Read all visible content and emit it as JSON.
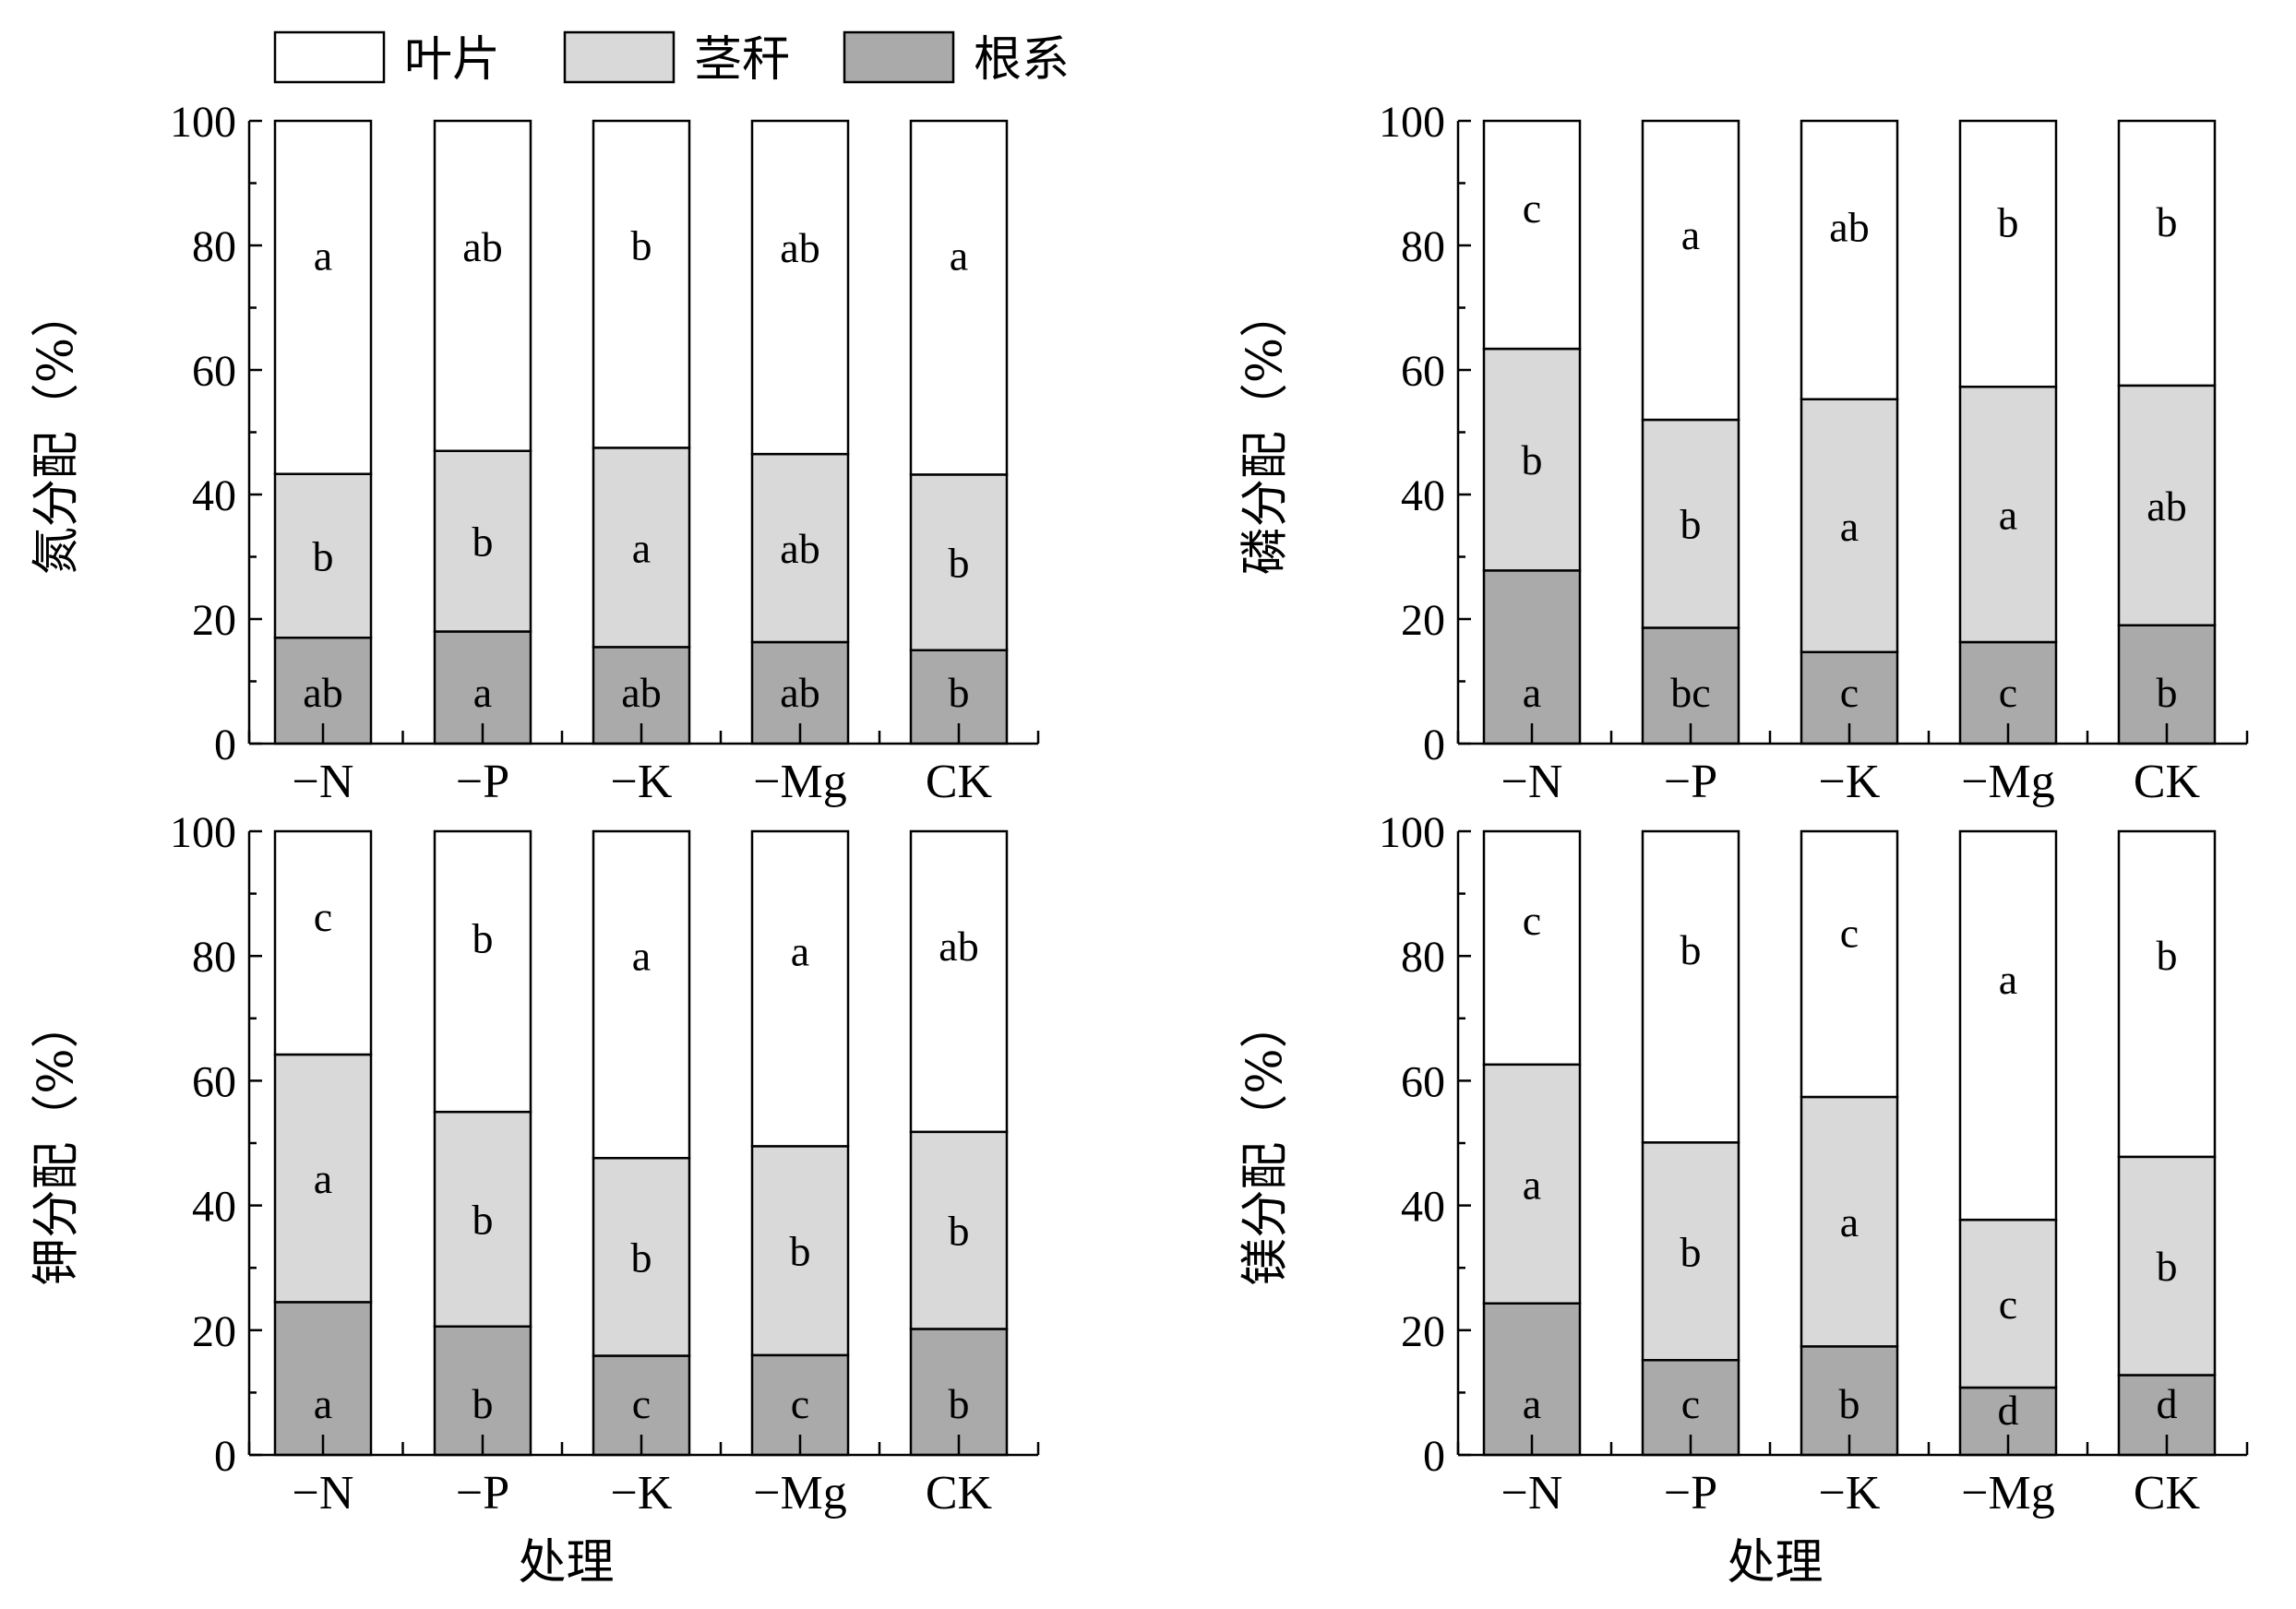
{
  "chart_data": {
    "legend": [
      {
        "name": "叶片",
        "color": "#ffffff"
      },
      {
        "name": "茎秆",
        "color": "#d9d9d9"
      },
      {
        "name": "根系",
        "color": "#aaaaaa"
      }
    ],
    "panels": [
      {
        "type": "bar",
        "stacked": true,
        "ylabel": "氮分配（%）",
        "xlabel": "",
        "ylim": [
          0,
          100
        ],
        "yticks": [
          "0",
          "20",
          "40",
          "60",
          "80",
          "100"
        ],
        "categories": [
          "−N",
          "−P",
          "−K",
          "−Mg",
          "CK"
        ],
        "series": [
          {
            "name": "根系",
            "values": [
              17,
              18,
              15.5,
              16.3,
              15
            ],
            "letters": [
              "ab",
              "a",
              "ab",
              "ab",
              "b"
            ]
          },
          {
            "name": "茎秆",
            "values": [
              26.3,
              29,
              32,
              30.2,
              28.2
            ],
            "letters": [
              "b",
              "b",
              "a",
              "ab",
              "b"
            ]
          },
          {
            "name": "叶片",
            "values": [
              56.7,
              53,
              52.5,
              53.5,
              56.8
            ],
            "letters": [
              "a",
              "ab",
              "b",
              "ab",
              "a"
            ]
          }
        ]
      },
      {
        "type": "bar",
        "stacked": true,
        "ylabel": "磷分配（%）",
        "xlabel": "",
        "ylim": [
          0,
          100
        ],
        "yticks": [
          "0",
          "20",
          "40",
          "60",
          "80",
          "100"
        ],
        "categories": [
          "−N",
          "−P",
          "−K",
          "−Mg",
          "CK"
        ],
        "series": [
          {
            "name": "根系",
            "values": [
              27.8,
              18.6,
              14.7,
              16.3,
              19
            ],
            "letters": [
              "a",
              "bc",
              "c",
              "c",
              "b"
            ]
          },
          {
            "name": "茎秆",
            "values": [
              35.6,
              33.4,
              40.6,
              41,
              38.5
            ],
            "letters": [
              "b",
              "b",
              "a",
              "a",
              "ab"
            ]
          },
          {
            "name": "叶片",
            "values": [
              36.6,
              48,
              44.7,
              42.7,
              42.5
            ],
            "letters": [
              "c",
              "a",
              "ab",
              "b",
              "b"
            ]
          }
        ]
      },
      {
        "type": "bar",
        "stacked": true,
        "ylabel": "钾分配（%）",
        "xlabel": "处理",
        "ylim": [
          0,
          100
        ],
        "yticks": [
          "0",
          "20",
          "40",
          "60",
          "80",
          "100"
        ],
        "categories": [
          "−N",
          "−P",
          "−K",
          "−Mg",
          "CK"
        ],
        "series": [
          {
            "name": "根系",
            "values": [
              24.5,
              20.6,
              15.9,
              16,
              20.2
            ],
            "letters": [
              "a",
              "b",
              "c",
              "c",
              "b"
            ]
          },
          {
            "name": "茎秆",
            "values": [
              39.7,
              34.4,
              31.7,
              33.5,
              31.6
            ],
            "letters": [
              "a",
              "b",
              "b",
              "b",
              "b"
            ]
          },
          {
            "name": "叶片",
            "values": [
              35.8,
              45,
              52.4,
              50.5,
              48.2
            ],
            "letters": [
              "c",
              "b",
              "a",
              "a",
              "ab"
            ]
          }
        ]
      },
      {
        "type": "bar",
        "stacked": true,
        "ylabel": "镁分配（%）",
        "xlabel": "处理",
        "ylim": [
          0,
          100
        ],
        "yticks": [
          "0",
          "20",
          "40",
          "60",
          "80",
          "100"
        ],
        "categories": [
          "−N",
          "−P",
          "−K",
          "−Mg",
          "CK"
        ],
        "series": [
          {
            "name": "根系",
            "values": [
              24.3,
              15.2,
              17.4,
              10.8,
              12.8
            ],
            "letters": [
              "a",
              "c",
              "b",
              "d",
              "d"
            ]
          },
          {
            "name": "茎秆",
            "values": [
              38.3,
              34.9,
              40,
              26.9,
              35
            ],
            "letters": [
              "a",
              "b",
              "a",
              "c",
              "b"
            ]
          },
          {
            "name": "叶片",
            "values": [
              37.4,
              49.9,
              42.6,
              62.3,
              52.2
            ],
            "letters": [
              "c",
              "b",
              "c",
              "a",
              "b"
            ]
          }
        ]
      }
    ]
  }
}
